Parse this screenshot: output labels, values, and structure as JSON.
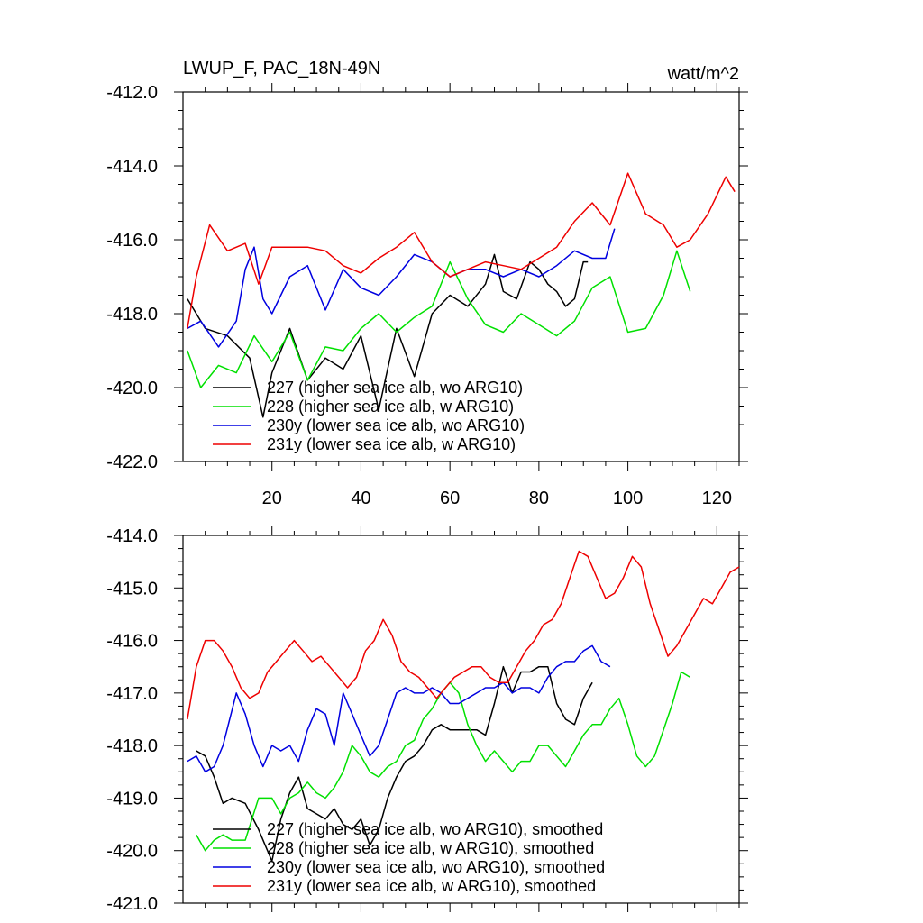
{
  "header": {
    "title_left": "LWUP_F, PAC_18N-49N",
    "title_right": "watt/m^2"
  },
  "chart_data": [
    {
      "type": "line",
      "title": "LWUP_F, PAC_18N-49N",
      "units": "watt/m^2",
      "xlim": [
        0,
        125
      ],
      "ylim": [
        -422,
        -412
      ],
      "x_ticks": [
        20,
        40,
        60,
        80,
        100,
        120
      ],
      "x_tick_labels": [
        "20",
        "40",
        "60",
        "80",
        "100",
        "120"
      ],
      "y_ticks": [
        -412,
        -414,
        -416,
        -418,
        -420,
        -422
      ],
      "y_tick_labels": [
        "-412.0",
        "-414.0",
        "-416.0",
        "-418.0",
        "-420.0",
        "-422.0"
      ],
      "legend_position": "bottom-left",
      "series": [
        {
          "name": "227 (higher sea ice alb, wo ARG10)",
          "color": "#000000",
          "x": [
            1,
            5,
            10,
            15,
            18,
            20,
            24,
            28,
            32,
            36,
            40,
            44,
            48,
            52,
            56,
            60,
            64,
            68,
            70,
            72,
            75,
            78,
            80,
            82,
            84,
            86,
            88,
            90,
            91
          ],
          "values": [
            -417.6,
            -418.4,
            -418.6,
            -419.2,
            -420.8,
            -419.6,
            -418.4,
            -419.8,
            -419.2,
            -419.5,
            -418.6,
            -420.6,
            -418.4,
            -419.7,
            -418.0,
            -417.5,
            -417.8,
            -417.2,
            -416.4,
            -417.4,
            -417.6,
            -416.6,
            -416.8,
            -417.2,
            -417.4,
            -417.8,
            -417.6,
            -416.6,
            -416.6
          ]
        },
        {
          "name": "228 (higher sea ice alb, w ARG10)",
          "color": "#00e000",
          "x": [
            1,
            4,
            8,
            12,
            16,
            20,
            24,
            28,
            32,
            36,
            40,
            44,
            48,
            52,
            56,
            60,
            64,
            68,
            72,
            76,
            80,
            84,
            88,
            92,
            96,
            100,
            104,
            108,
            111,
            114
          ],
          "values": [
            -419.0,
            -420.0,
            -419.4,
            -419.6,
            -418.6,
            -419.3,
            -418.5,
            -419.8,
            -418.9,
            -419.0,
            -418.4,
            -418.0,
            -418.5,
            -418.1,
            -417.8,
            -416.6,
            -417.6,
            -418.3,
            -418.5,
            -418.0,
            -418.3,
            -418.6,
            -418.2,
            -417.3,
            -417.0,
            -418.5,
            -418.4,
            -417.5,
            -416.3,
            -417.4
          ]
        },
        {
          "name": "230y (lower sea ice alb, wo ARG10)",
          "color": "#0000e0",
          "x": [
            1,
            4,
            8,
            12,
            14,
            16,
            18,
            20,
            24,
            28,
            32,
            36,
            40,
            44,
            48,
            52,
            56,
            60,
            64,
            68,
            72,
            76,
            80,
            84,
            88,
            92,
            95,
            97
          ],
          "values": [
            -418.4,
            -418.2,
            -418.9,
            -418.2,
            -416.8,
            -416.2,
            -417.6,
            -418.0,
            -417.0,
            -416.7,
            -417.9,
            -416.8,
            -417.3,
            -417.5,
            -417.0,
            -416.4,
            -416.6,
            -417.0,
            -416.8,
            -416.8,
            -417.0,
            -416.8,
            -417.0,
            -416.7,
            -416.3,
            -416.5,
            -416.5,
            -415.7
          ]
        },
        {
          "name": "231y (lower sea ice alb, w ARG10)",
          "color": "#ee0000",
          "x": [
            1,
            3,
            6,
            10,
            14,
            17,
            20,
            24,
            28,
            32,
            36,
            40,
            44,
            48,
            52,
            56,
            60,
            64,
            68,
            72,
            76,
            80,
            84,
            88,
            92,
            96,
            100,
            104,
            108,
            111,
            114,
            118,
            122,
            124
          ],
          "values": [
            -418.4,
            -417.0,
            -415.6,
            -416.3,
            -416.1,
            -417.2,
            -416.2,
            -416.2,
            -416.2,
            -416.3,
            -416.7,
            -416.9,
            -416.5,
            -416.2,
            -415.8,
            -416.6,
            -417.0,
            -416.8,
            -416.6,
            -416.7,
            -416.8,
            -416.5,
            -416.2,
            -415.5,
            -415.0,
            -415.6,
            -414.2,
            -415.3,
            -415.6,
            -416.2,
            -416.0,
            -415.3,
            -414.3,
            -414.7
          ]
        }
      ],
      "legend": [
        {
          "label": "227 (higher sea ice alb, wo ARG10)",
          "color": "#000000"
        },
        {
          "label": "228 (higher sea ice alb, w ARG10)",
          "color": "#00e000"
        },
        {
          "label": "230y (lower sea ice alb, wo ARG10)",
          "color": "#0000e0"
        },
        {
          "label": "231y (lower sea ice alb, w ARG10)",
          "color": "#ee0000"
        }
      ]
    },
    {
      "type": "line",
      "title": "",
      "xlim": [
        0,
        125
      ],
      "ylim": [
        -421,
        -414
      ],
      "x_ticks": [
        20,
        40,
        60,
        80,
        100,
        120
      ],
      "x_tick_labels": [],
      "y_ticks": [
        -414,
        -415,
        -416,
        -417,
        -418,
        -419,
        -420,
        -421
      ],
      "y_tick_labels": [
        "-414.0",
        "-415.0",
        "-416.0",
        "-417.0",
        "-418.0",
        "-419.0",
        "-420.0",
        "-421.0"
      ],
      "legend_position": "bottom-left",
      "series": [
        {
          "name": "227 (higher sea ice alb, wo ARG10), smoothed",
          "color": "#000000",
          "x": [
            3,
            5,
            7,
            9,
            11,
            14,
            17,
            20,
            22,
            24,
            26,
            28,
            30,
            32,
            34,
            36,
            38,
            40,
            42,
            44,
            46,
            48,
            50,
            52,
            54,
            56,
            58,
            60,
            62,
            64,
            66,
            68,
            70,
            72,
            74,
            76,
            78,
            80,
            82,
            84,
            86,
            88,
            90,
            92
          ],
          "values": [
            -418.1,
            -418.2,
            -418.6,
            -419.1,
            -419.0,
            -419.1,
            -419.6,
            -420.2,
            -419.4,
            -418.9,
            -418.6,
            -419.2,
            -419.3,
            -419.4,
            -419.2,
            -419.5,
            -419.6,
            -419.4,
            -419.9,
            -419.6,
            -419.0,
            -418.6,
            -418.3,
            -418.2,
            -418.0,
            -417.7,
            -417.6,
            -417.7,
            -417.7,
            -417.7,
            -417.7,
            -417.8,
            -417.2,
            -416.5,
            -417.0,
            -416.6,
            -416.6,
            -416.5,
            -416.5,
            -417.2,
            -417.5,
            -417.6,
            -417.1,
            -416.8
          ]
        },
        {
          "name": "228 (higher sea ice alb, w ARG10), smoothed",
          "color": "#00e000",
          "x": [
            3,
            5,
            7,
            9,
            11,
            14,
            17,
            20,
            22,
            24,
            26,
            28,
            30,
            32,
            34,
            36,
            38,
            40,
            42,
            44,
            46,
            48,
            50,
            52,
            54,
            56,
            58,
            60,
            62,
            64,
            66,
            68,
            70,
            72,
            74,
            76,
            78,
            80,
            82,
            84,
            86,
            88,
            90,
            92,
            94,
            96,
            98,
            100,
            102,
            104,
            106,
            108,
            110,
            112,
            114
          ],
          "values": [
            -419.7,
            -420.0,
            -419.8,
            -419.7,
            -419.8,
            -419.8,
            -419.0,
            -419.0,
            -419.3,
            -419.0,
            -418.9,
            -418.7,
            -418.9,
            -419.0,
            -418.8,
            -418.5,
            -418.0,
            -418.2,
            -418.5,
            -418.6,
            -418.4,
            -418.3,
            -418.0,
            -417.9,
            -417.5,
            -417.3,
            -417.0,
            -416.8,
            -417.0,
            -417.6,
            -418.0,
            -418.3,
            -418.1,
            -418.3,
            -418.5,
            -418.3,
            -418.3,
            -418.0,
            -418.0,
            -418.2,
            -418.4,
            -418.1,
            -417.8,
            -417.6,
            -417.6,
            -417.3,
            -417.1,
            -417.6,
            -418.2,
            -418.4,
            -418.2,
            -417.7,
            -417.2,
            -416.6,
            -416.7
          ]
        },
        {
          "name": "230y (lower sea ice alb, wo ARG10), smoothed",
          "color": "#0000e0",
          "x": [
            1,
            3,
            5,
            7,
            9,
            12,
            14,
            16,
            18,
            20,
            22,
            24,
            26,
            28,
            30,
            32,
            34,
            36,
            38,
            40,
            42,
            44,
            46,
            48,
            50,
            52,
            54,
            56,
            58,
            60,
            62,
            64,
            66,
            68,
            70,
            72,
            74,
            76,
            78,
            80,
            82,
            84,
            86,
            88,
            90,
            92,
            94,
            96
          ],
          "values": [
            -418.3,
            -418.2,
            -418.5,
            -418.4,
            -418.0,
            -417.0,
            -417.4,
            -418.0,
            -418.4,
            -418.0,
            -418.1,
            -418.0,
            -418.3,
            -417.7,
            -417.3,
            -417.4,
            -418.0,
            -417.0,
            -417.4,
            -417.8,
            -418.2,
            -418.0,
            -417.5,
            -417.0,
            -416.9,
            -417.0,
            -417.0,
            -416.9,
            -417.0,
            -417.2,
            -417.2,
            -417.1,
            -417.0,
            -416.9,
            -416.9,
            -416.8,
            -417.0,
            -416.9,
            -416.9,
            -417.0,
            -416.7,
            -416.5,
            -416.4,
            -416.4,
            -416.2,
            -416.1,
            -416.4,
            -416.5
          ]
        },
        {
          "name": "231y (lower sea ice alb, w ARG10), smoothed",
          "color": "#ee0000",
          "x": [
            1,
            3,
            5,
            7,
            9,
            11,
            13,
            15,
            17,
            19,
            21,
            23,
            25,
            27,
            29,
            31,
            33,
            35,
            37,
            39,
            41,
            43,
            45,
            47,
            49,
            51,
            53,
            55,
            57,
            59,
            61,
            63,
            65,
            67,
            69,
            71,
            73,
            75,
            77,
            79,
            81,
            83,
            85,
            87,
            89,
            91,
            93,
            95,
            97,
            99,
            101,
            103,
            105,
            107,
            109,
            111,
            113,
            115,
            117,
            119,
            121,
            123,
            125
          ],
          "values": [
            -417.5,
            -416.5,
            -416.0,
            -416.0,
            -416.2,
            -416.5,
            -416.9,
            -417.1,
            -417.0,
            -416.6,
            -416.4,
            -416.2,
            -416.0,
            -416.2,
            -416.4,
            -416.3,
            -416.5,
            -416.7,
            -416.9,
            -416.7,
            -416.2,
            -416.0,
            -415.6,
            -415.9,
            -416.4,
            -416.6,
            -416.7,
            -416.9,
            -417.1,
            -416.9,
            -416.7,
            -416.6,
            -416.5,
            -416.5,
            -416.7,
            -416.8,
            -416.8,
            -416.5,
            -416.2,
            -416.0,
            -415.7,
            -415.6,
            -415.3,
            -414.8,
            -414.3,
            -414.4,
            -414.8,
            -415.2,
            -415.1,
            -414.8,
            -414.4,
            -414.6,
            -415.3,
            -415.8,
            -416.3,
            -416.1,
            -415.8,
            -415.5,
            -415.2,
            -415.3,
            -415.0,
            -414.7,
            -414.6
          ]
        }
      ],
      "legend": [
        {
          "label": "227 (higher sea ice alb, wo ARG10), smoothed",
          "color": "#000000"
        },
        {
          "label": "228 (higher sea ice alb, w ARG10), smoothed",
          "color": "#00e000"
        },
        {
          "label": "230y (lower sea ice alb, wo ARG10), smoothed",
          "color": "#0000e0"
        },
        {
          "label": "231y (lower sea ice alb, w ARG10), smoothed",
          "color": "#ee0000"
        }
      ]
    }
  ]
}
